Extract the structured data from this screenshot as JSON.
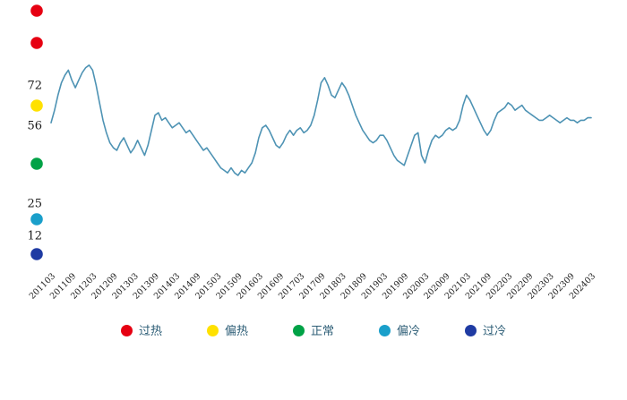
{
  "zones": [
    {
      "key": "overheated",
      "label": "过热",
      "color": "#E60012"
    },
    {
      "key": "warm",
      "label": "偏热",
      "color": "#FFE100"
    },
    {
      "key": "normal",
      "label": "正常",
      "color": "#00A246"
    },
    {
      "key": "cool",
      "label": "偏冷",
      "color": "#1A9FCA"
    },
    {
      "key": "cold",
      "label": "过冷",
      "color": "#1F3BA3"
    }
  ],
  "y_axis": {
    "labels": [
      {
        "text": "72",
        "value": 72
      },
      {
        "text": "56",
        "value": 56
      },
      {
        "text": "25",
        "value": 25
      },
      {
        "text": "12",
        "value": 12
      }
    ]
  },
  "chart_data": {
    "type": "line",
    "title": "",
    "xlabel": "",
    "ylabel": "",
    "x_frequency": "monthly",
    "x_range": [
      "201103",
      "202403"
    ],
    "x_tick_labels": [
      "201103",
      "201109",
      "201203",
      "201209",
      "201303",
      "201309",
      "201403",
      "201409",
      "201503",
      "201509",
      "201603",
      "201609",
      "201703",
      "201709",
      "201803",
      "201809",
      "201903",
      "201909",
      "202003",
      "202009",
      "202103",
      "202109",
      "202203",
      "202209",
      "202303",
      "202309",
      "202403"
    ],
    "values": [
      57,
      62,
      68,
      73,
      76,
      78,
      74,
      71,
      74,
      77,
      79,
      80,
      78,
      72,
      65,
      58,
      53,
      49,
      47,
      46,
      49,
      51,
      48,
      45,
      47,
      50,
      47,
      44,
      48,
      54,
      60,
      61,
      58,
      59,
      57,
      55,
      56,
      57,
      55,
      53,
      54,
      52,
      50,
      48,
      46,
      47,
      45,
      43,
      41,
      39,
      38,
      37,
      39,
      37,
      36,
      38,
      37,
      39,
      41,
      45,
      51,
      55,
      56,
      54,
      51,
      48,
      47,
      49,
      52,
      54,
      52,
      54,
      55,
      53,
      54,
      56,
      60,
      66,
      73,
      75,
      72,
      68,
      67,
      70,
      73,
      71,
      68,
      64,
      60,
      57,
      54,
      52,
      50,
      49,
      50,
      52,
      52,
      50,
      47,
      44,
      42,
      41,
      40,
      44,
      48,
      52,
      53,
      44,
      41,
      46,
      50,
      52,
      51,
      52,
      54,
      55,
      54,
      55,
      58,
      64,
      68,
      66,
      63,
      60,
      57,
      54,
      52,
      54,
      58,
      61,
      62,
      63,
      65,
      64,
      62,
      63,
      64,
      62,
      61,
      60,
      59,
      58,
      58,
      59,
      60,
      59,
      58,
      57,
      58,
      59,
      58,
      58,
      57,
      58,
      58,
      59,
      59
    ],
    "ylim": [
      0,
      106
    ],
    "y_thresholds": [
      72,
      56,
      25,
      12
    ],
    "line_color": "#4E93B4",
    "grid": false,
    "legend_position": "bottom"
  }
}
